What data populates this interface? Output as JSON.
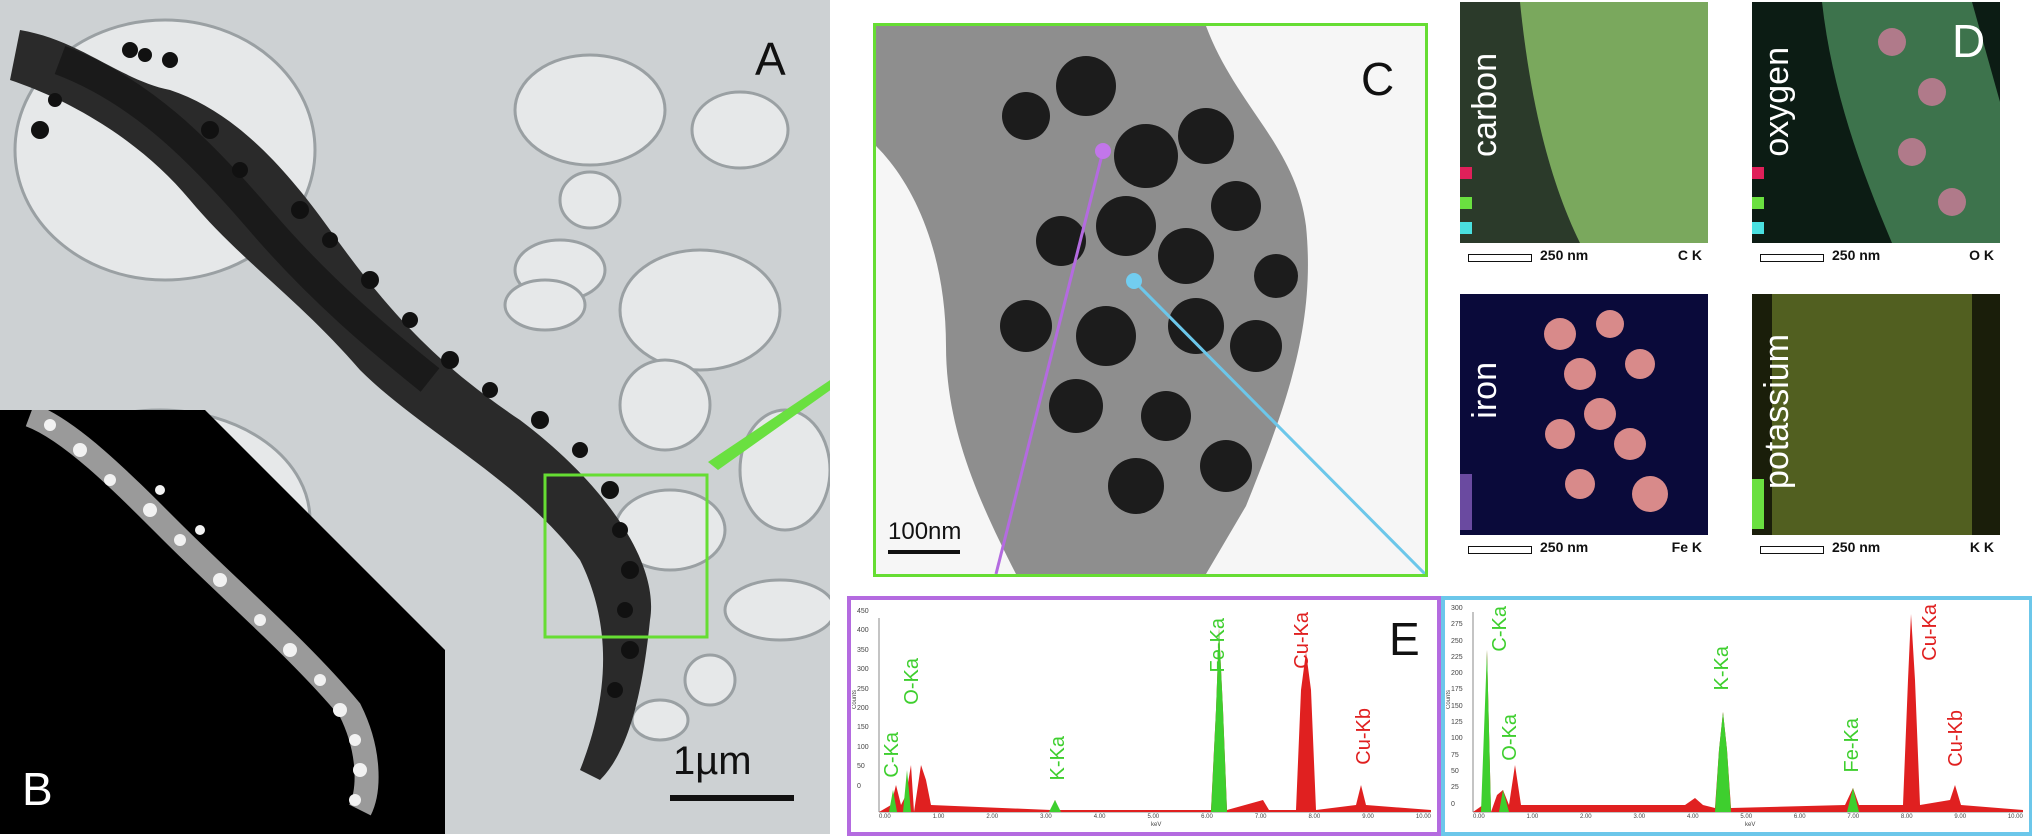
{
  "panels": {
    "a_letter": "A",
    "b_letter": "B",
    "c_letter": "C",
    "d_letter": "D",
    "e_letter": "E"
  },
  "scale_bars": {
    "a": "1µm",
    "c": "100nm",
    "maps": "250 nm"
  },
  "maps": [
    {
      "label": "carbon",
      "element": "C K",
      "tint": "#8fc46a"
    },
    {
      "label": "oxygen",
      "element": "O K",
      "tint": "#4a8a5a"
    },
    {
      "label": "iron",
      "element": "Fe K",
      "tint": "#2a3a9a"
    },
    {
      "label": "potassium",
      "element": "K K",
      "tint": "#6a7a2a"
    }
  ],
  "spectrum_left": {
    "y_ticks": [
      "450",
      "400",
      "350",
      "300",
      "250",
      "200",
      "150",
      "100",
      "50",
      "0"
    ],
    "x_ticks": [
      "0.00",
      "1.00",
      "2.00",
      "3.00",
      "4.00",
      "5.00",
      "6.00",
      "7.00",
      "8.00",
      "9.00",
      "10.00"
    ],
    "y_axis": "Counts",
    "x_axis": "keV",
    "peaks": [
      {
        "label": "C-Ka",
        "color": "#3ecf2e"
      },
      {
        "label": "O-Ka",
        "color": "#3ecf2e"
      },
      {
        "label": "K-Ka",
        "color": "#3ecf2e"
      },
      {
        "label": "Fe-Ka",
        "color": "#3ecf2e"
      },
      {
        "label": "Cu-Ka",
        "color": "#e02020"
      },
      {
        "label": "Cu-Kb",
        "color": "#e02020"
      }
    ]
  },
  "spectrum_right": {
    "y_ticks": [
      "300",
      "275",
      "250",
      "225",
      "200",
      "175",
      "150",
      "125",
      "100",
      "75",
      "50",
      "25",
      "0"
    ],
    "x_ticks": [
      "0.00",
      "1.00",
      "2.00",
      "3.00",
      "4.00",
      "5.00",
      "6.00",
      "7.00",
      "8.00",
      "9.00",
      "10.00"
    ],
    "y_axis": "Counts",
    "x_axis": "keV",
    "peaks": [
      {
        "label": "C-Ka",
        "color": "#3ecf2e"
      },
      {
        "label": "O-Ka",
        "color": "#3ecf2e"
      },
      {
        "label": "K-Ka",
        "color": "#3ecf2e"
      },
      {
        "label": "Fe-Ka",
        "color": "#3ecf2e"
      },
      {
        "label": "Cu-Ka",
        "color": "#e02020"
      },
      {
        "label": "Cu-Kb",
        "color": "#e02020"
      }
    ]
  }
}
